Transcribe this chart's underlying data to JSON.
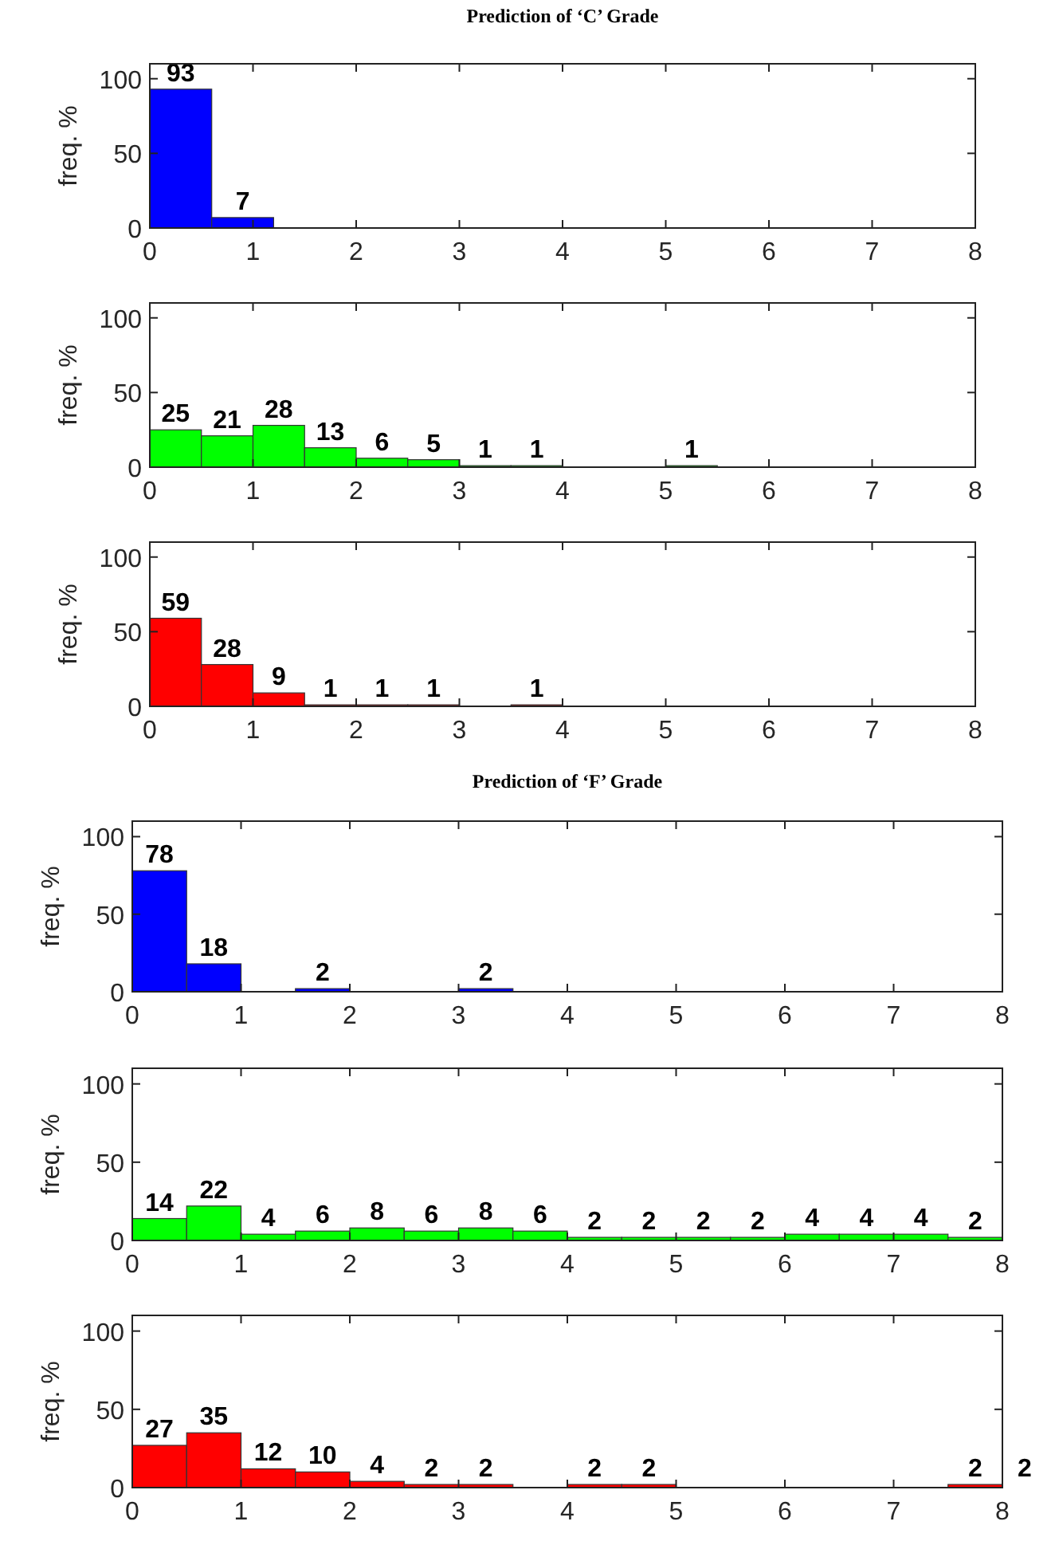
{
  "chart_data": [
    {
      "type": "histogram",
      "title": "Prediction of ‘C’ Grade",
      "ylabel": "freq. %",
      "bins": [
        0,
        0.6,
        1.2
      ],
      "values": [
        93,
        7
      ],
      "value_labels": [
        "93",
        "7"
      ],
      "color": "#0000ff",
      "xlim": [
        0,
        8
      ],
      "xticks": [
        0,
        1,
        2,
        3,
        4,
        5,
        6,
        7,
        8
      ],
      "ylim": [
        0,
        110
      ],
      "yticks": [
        0,
        50,
        100
      ],
      "grid": false
    },
    {
      "type": "histogram",
      "ylabel": "freq. %",
      "bins": [
        0,
        0.5,
        1,
        1.5,
        2,
        2.5,
        3,
        3.5,
        4,
        4.5,
        5,
        5.5
      ],
      "values": [
        25,
        21,
        28,
        13,
        6,
        5,
        1,
        1,
        0,
        0,
        1
      ],
      "value_labels": [
        "25",
        "21",
        "28",
        "13",
        "6",
        "5",
        "1",
        "1",
        null,
        null,
        "1"
      ],
      "color": "#00ff00",
      "xlim": [
        0,
        8
      ],
      "xticks": [
        0,
        1,
        2,
        3,
        4,
        5,
        6,
        7,
        8
      ],
      "ylim": [
        0,
        110
      ],
      "yticks": [
        0,
        50,
        100
      ],
      "grid": false
    },
    {
      "type": "histogram",
      "ylabel": "freq. %",
      "bins": [
        0,
        0.5,
        1,
        1.5,
        2,
        2.5,
        3,
        3.5,
        4
      ],
      "values": [
        59,
        28,
        9,
        1,
        1,
        1,
        0,
        1
      ],
      "value_labels": [
        "59",
        "28",
        "9",
        "1",
        "1",
        "1",
        null,
        "1"
      ],
      "color": "#ff0000",
      "xlim": [
        0,
        8
      ],
      "xticks": [
        0,
        1,
        2,
        3,
        4,
        5,
        6,
        7,
        8
      ],
      "ylim": [
        0,
        110
      ],
      "yticks": [
        0,
        50,
        100
      ],
      "grid": false
    },
    {
      "type": "histogram",
      "title": "Prediction of ‘F’ Grade",
      "ylabel": "freq. %",
      "bins": [
        0,
        0.5,
        1,
        1.5,
        2,
        2.5,
        3,
        3.5
      ],
      "values": [
        78,
        18,
        0,
        2,
        0,
        0,
        2
      ],
      "value_labels": [
        "78",
        "18",
        null,
        "2",
        null,
        null,
        "2"
      ],
      "color": "#0000ff",
      "xlim": [
        0,
        8
      ],
      "xticks": [
        0,
        1,
        2,
        3,
        4,
        5,
        6,
        7,
        8
      ],
      "ylim": [
        0,
        110
      ],
      "yticks": [
        0,
        50,
        100
      ],
      "grid": false
    },
    {
      "type": "histogram",
      "ylabel": "freq. %",
      "bins": [
        0,
        0.5,
        1,
        1.5,
        2,
        2.5,
        3,
        3.5,
        4,
        4.5,
        5,
        5.5,
        6,
        6.5,
        7,
        7.5,
        8
      ],
      "values": [
        14,
        22,
        4,
        6,
        8,
        6,
        8,
        6,
        2,
        2,
        2,
        2,
        4,
        4,
        4,
        2
      ],
      "value_labels": [
        "14",
        "22",
        "4",
        "6",
        "8",
        "6",
        "8",
        "6",
        "2",
        "2",
        "2",
        "2",
        "4",
        "4",
        "4",
        "2"
      ],
      "color": "#00ff00",
      "xlim": [
        0,
        8
      ],
      "xticks": [
        0,
        1,
        2,
        3,
        4,
        5,
        6,
        7,
        8
      ],
      "ylim": [
        0,
        110
      ],
      "yticks": [
        0,
        50,
        100
      ],
      "grid": false
    },
    {
      "type": "histogram",
      "ylabel": "freq. %",
      "bins": [
        0,
        0.5,
        1,
        1.5,
        2,
        2.5,
        3,
        3.5,
        4,
        4.5,
        5,
        5.5,
        6,
        6.5,
        7,
        7.5,
        8
      ],
      "values": [
        27,
        35,
        12,
        10,
        4,
        2,
        2,
        0,
        2,
        2,
        0,
        0,
        0,
        0,
        0,
        2
      ],
      "value_labels": [
        "27",
        "35",
        "12",
        "10",
        "4",
        "2",
        "2",
        null,
        "2",
        "2",
        null,
        null,
        null,
        null,
        null,
        "2"
      ],
      "color": "#ff0000",
      "xlim": [
        0,
        8
      ],
      "xticks": [
        0,
        1,
        2,
        3,
        4,
        5,
        6,
        7,
        8
      ],
      "ylim": [
        0,
        110
      ],
      "yticks": [
        0,
        50,
        100
      ],
      "grid": false,
      "annotations": [
        "2"
      ]
    }
  ]
}
